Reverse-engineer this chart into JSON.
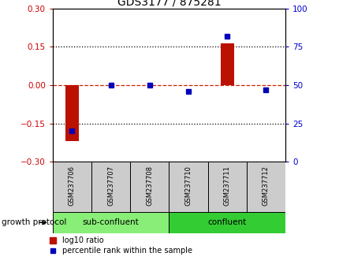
{
  "title": "GDS3177 / 875281",
  "samples": [
    "GSM237706",
    "GSM237707",
    "GSM237708",
    "GSM237710",
    "GSM237711",
    "GSM237712"
  ],
  "log10_ratio": [
    -0.22,
    0.0,
    0.0,
    0.0,
    0.163,
    0.0
  ],
  "percentile_rank": [
    20.0,
    50.0,
    50.0,
    46.0,
    82.0,
    47.0
  ],
  "ylim_left": [
    -0.3,
    0.3
  ],
  "ylim_right": [
    0,
    100
  ],
  "yticks_left": [
    -0.3,
    -0.15,
    0.0,
    0.15,
    0.3
  ],
  "yticks_right": [
    0,
    25,
    50,
    75,
    100
  ],
  "bar_color": "#bb1100",
  "dot_color": "#0000bb",
  "hline_color": "#cc2200",
  "dotted_color": "#000000",
  "sub_confluent_color": "#88ee77",
  "confluent_color": "#33cc33",
  "label_color_left": "#cc0000",
  "label_color_right": "#0000cc",
  "growth_protocol_label": "growth protocol",
  "sub_confluent_label": "sub-confluent",
  "confluent_label": "confluent",
  "legend_log10": "log10 ratio",
  "legend_pct": "percentile rank within the sample",
  "bar_width": 0.35,
  "dot_size": 28
}
